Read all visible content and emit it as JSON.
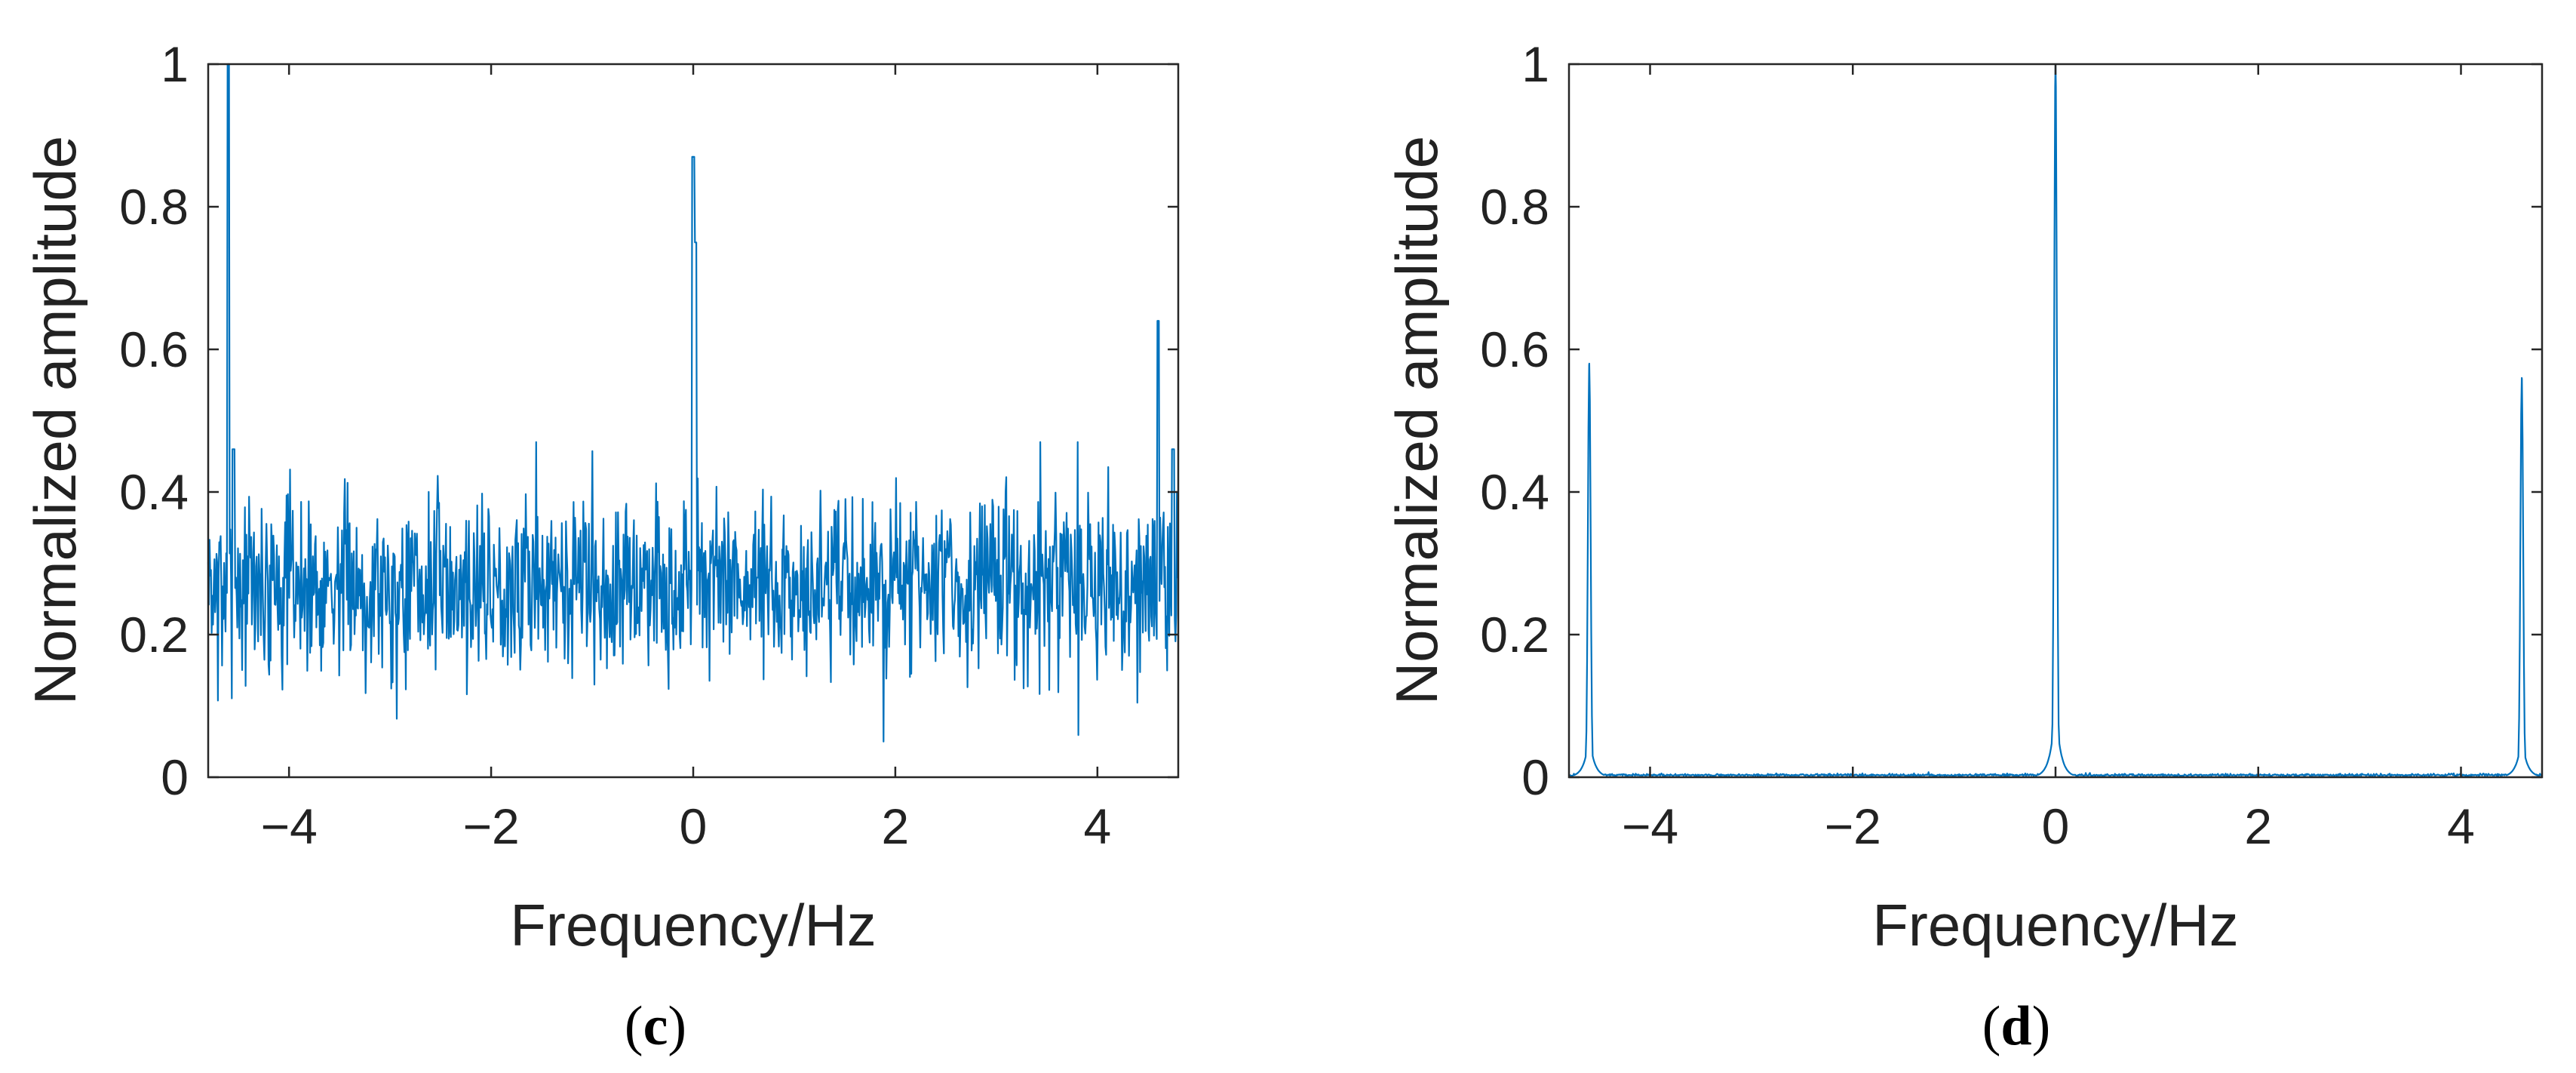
{
  "chart_data": [
    {
      "type": "line",
      "panel_label": "c",
      "xlabel": "Frequency/Hz",
      "ylabel": "Normalized amplitude",
      "xlim": [
        -4.8,
        4.8
      ],
      "ylim": [
        0,
        1
      ],
      "xticks": [
        -4,
        -2,
        0,
        2,
        4
      ],
      "xtick_labels": [
        "−4",
        "−2",
        "0",
        "2",
        "4"
      ],
      "yticks": [
        0,
        0.2,
        0.4,
        0.6,
        0.8,
        1
      ],
      "ytick_labels": [
        "0",
        "0.2",
        "0.4",
        "0.6",
        "0.8",
        "1"
      ],
      "grid": false,
      "line_color": "#0072BD",
      "noise_floor": {
        "mean": 0.27,
        "spread": 0.06,
        "min": 0.05,
        "max": 0.47
      },
      "peaks": [
        {
          "x": -4.6,
          "y": 1.0
        },
        {
          "x": -4.55,
          "y": 0.46
        },
        {
          "x": 0.0,
          "y": 0.87
        },
        {
          "x": 0.02,
          "y": 0.75
        },
        {
          "x": 4.6,
          "y": 0.64
        },
        {
          "x": 4.75,
          "y": 0.46
        }
      ]
    },
    {
      "type": "line",
      "panel_label": "d",
      "xlabel": "Frequency/Hz",
      "ylabel": "Normalized amplitude",
      "xlim": [
        -4.8,
        4.8
      ],
      "ylim": [
        0,
        1
      ],
      "xticks": [
        -4,
        -2,
        0,
        2,
        4
      ],
      "xtick_labels": [
        "−4",
        "−2",
        "0",
        "2",
        "4"
      ],
      "yticks": [
        0,
        0.2,
        0.4,
        0.6,
        0.8,
        1
      ],
      "ytick_labels": [
        "0",
        "0.2",
        "0.4",
        "0.6",
        "0.8",
        "1"
      ],
      "grid": false,
      "line_color": "#0072BD",
      "noise_floor": {
        "mean": 0.002,
        "spread": 0.002,
        "min": 0.0,
        "max": 0.01
      },
      "peaks": [
        {
          "x": -4.6,
          "y": 0.58
        },
        {
          "x": 0.0,
          "y": 1.0
        },
        {
          "x": 4.6,
          "y": 0.56
        }
      ]
    }
  ]
}
